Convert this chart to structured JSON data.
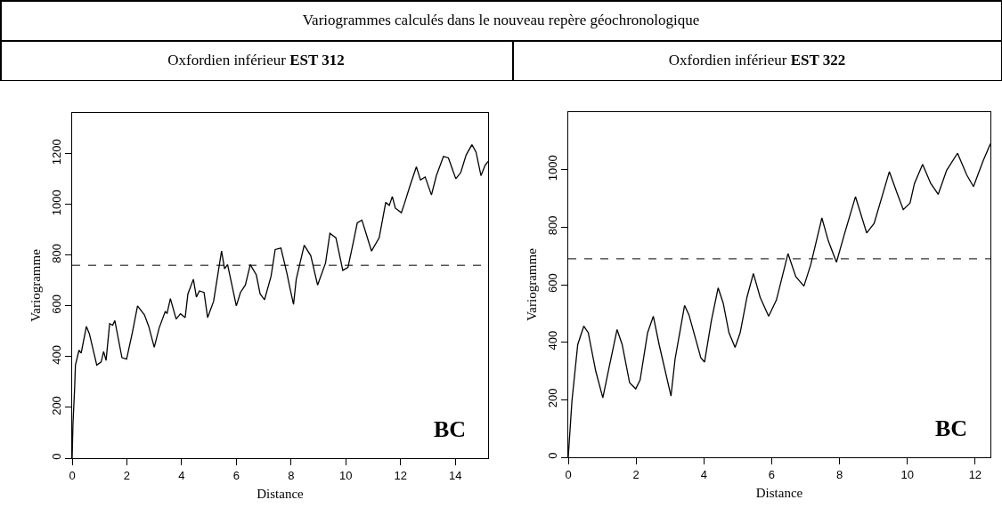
{
  "chart_data": [
    {
      "type": "line",
      "title": "Variogrammes calculés dans le nouveau repère géochronologique",
      "subtitle": "Oxfordien inférieur EST 312",
      "xlabel": "Distance",
      "ylabel": "Variogramme",
      "x": [
        0,
        0.03,
        0.09,
        0.12,
        0.25,
        0.33,
        0.52,
        0.63,
        0.9,
        1.06,
        1.15,
        1.24,
        1.37,
        1.48,
        1.56,
        1.82,
        1.99,
        2.2,
        2.39,
        2.64,
        2.8,
        3.0,
        3.18,
        3.4,
        3.47,
        3.59,
        3.8,
        3.96,
        4.13,
        4.23,
        4.43,
        4.54,
        4.65,
        4.82,
        4.95,
        5.17,
        5.46,
        5.57,
        5.68,
        6.0,
        6.15,
        6.33,
        6.51,
        6.73,
        6.87,
        7.03,
        7.27,
        7.42,
        7.63,
        7.85,
        7.96,
        8.09,
        8.19,
        8.48,
        8.72,
        8.97,
        9.26,
        9.42,
        9.64,
        9.89,
        10.08,
        10.24,
        10.42,
        10.59,
        10.94,
        11.22,
        11.46,
        11.59,
        11.7,
        11.81,
        12.03,
        12.14,
        12.36,
        12.58,
        12.73,
        12.9,
        13.13,
        13.31,
        13.57,
        13.75,
        14.02,
        14.2,
        14.4,
        14.61,
        14.76,
        14.94,
        15.09,
        15.2
      ],
      "series": [
        {
          "color": "#000000",
          "values": [
            0,
            134,
            274,
            367,
            425,
            414,
            519,
            490,
            367,
            379,
            420,
            385,
            530,
            524,
            542,
            396,
            390,
            495,
            600,
            565,
            519,
            437,
            513,
            577,
            571,
            629,
            548,
            569,
            554,
            647,
            705,
            635,
            659,
            653,
            554,
            618,
            816,
            746,
            763,
            600,
            653,
            682,
            763,
            722,
            647,
            624,
            717,
            822,
            828,
            728,
            670,
            606,
            705,
            839,
            798,
            682,
            769,
            886,
            868,
            740,
            752,
            833,
            927,
            938,
            816,
            868,
            1008,
            996,
            1031,
            985,
            967,
            1002,
            1078,
            1148,
            1096,
            1108,
            1037,
            1113,
            1189,
            1183,
            1101,
            1125,
            1195,
            1235,
            1206,
            1113,
            1154,
            1169
          ]
        }
      ],
      "xlim": [
        0,
        15.2
      ],
      "xticks": [
        0,
        2,
        4,
        6,
        8,
        10,
        12,
        14
      ],
      "ylim": [
        0,
        1360
      ],
      "yticks": [
        0,
        200,
        400,
        600,
        800,
        1000,
        1200
      ],
      "ref_lines": [
        {
          "axis": "y",
          "value": 760,
          "color": "#000000",
          "line_style": "dashed"
        }
      ],
      "annotations": [
        "BC"
      ],
      "marker": "none",
      "line_style": "solid"
    },
    {
      "type": "line",
      "subtitle": "Oxfordien inférieur EST 322",
      "xlabel": "Distance",
      "ylabel": "Variogramme",
      "x": [
        0,
        0.11,
        0.28,
        0.46,
        0.59,
        0.81,
        1.02,
        1.2,
        1.44,
        1.59,
        1.81,
        1.99,
        2.12,
        2.34,
        2.51,
        2.68,
        3.03,
        3.15,
        3.43,
        3.56,
        3.91,
        4.02,
        4.22,
        4.42,
        4.57,
        4.74,
        4.92,
        5.07,
        5.27,
        5.46,
        5.66,
        5.91,
        6.14,
        6.48,
        6.71,
        6.95,
        7.15,
        7.48,
        7.67,
        7.91,
        8.16,
        8.47,
        8.8,
        9.02,
        9.47,
        9.69,
        9.88,
        10.08,
        10.21,
        10.45,
        10.69,
        10.91,
        11.16,
        11.48,
        11.75,
        11.95,
        12.23,
        12.45
      ],
      "series": [
        {
          "color": "#000000",
          "values": [
            0,
            197,
            392,
            456,
            433,
            300,
            207,
            310,
            444,
            392,
            259,
            238,
            269,
            433,
            490,
            392,
            213,
            341,
            528,
            495,
            346,
            331,
            474,
            589,
            536,
            433,
            382,
            433,
            556,
            639,
            556,
            490,
            547,
            708,
            628,
            595,
            669,
            832,
            752,
            678,
            782,
            906,
            780,
            813,
            993,
            921,
            861,
            884,
            952,
            1018,
            952,
            914,
            998,
            1057,
            982,
            941,
            1029,
            1090
          ]
        }
      ],
      "xlim": [
        0,
        12.45
      ],
      "xticks": [
        0,
        2,
        4,
        6,
        8,
        10,
        12
      ],
      "ylim": [
        0,
        1200
      ],
      "yticks": [
        0,
        200,
        400,
        600,
        800,
        1000
      ],
      "ref_lines": [
        {
          "axis": "y",
          "value": 690,
          "color": "#000000",
          "line_style": "dashed"
        }
      ],
      "annotations": [
        "BC"
      ],
      "marker": "none",
      "line_style": "solid"
    }
  ]
}
